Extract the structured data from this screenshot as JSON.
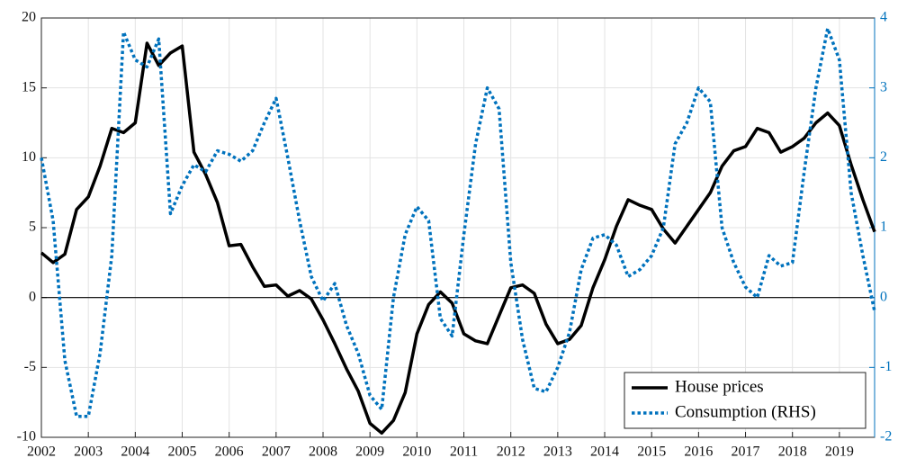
{
  "chart_data": {
    "type": "line",
    "x": [
      2002,
      2002.25,
      2002.5,
      2002.75,
      2003,
      2003.25,
      2003.5,
      2003.75,
      2004,
      2004.25,
      2004.5,
      2004.75,
      2005,
      2005.25,
      2005.5,
      2005.75,
      2006,
      2006.25,
      2006.5,
      2006.75,
      2007,
      2007.25,
      2007.5,
      2007.75,
      2008,
      2008.25,
      2008.5,
      2008.75,
      2009,
      2009.25,
      2009.5,
      2009.75,
      2010,
      2010.25,
      2010.5,
      2010.75,
      2011,
      2011.25,
      2011.5,
      2011.75,
      2012,
      2012.25,
      2012.5,
      2012.75,
      2013,
      2013.25,
      2013.5,
      2013.75,
      2014,
      2014.25,
      2014.5,
      2014.75,
      2015,
      2015.25,
      2015.5,
      2015.75,
      2016,
      2016.25,
      2016.5,
      2016.75,
      2017,
      2017.25,
      2017.5,
      2017.75,
      2018,
      2018.25,
      2018.5,
      2018.75,
      2019,
      2019.25,
      2019.5,
      2019.75
    ],
    "series": [
      {
        "name": "House prices",
        "color": "#000000",
        "line_style": "solid",
        "values": [
          3.2,
          2.5,
          3.1,
          6.3,
          7.2,
          9.4,
          12.1,
          11.8,
          12.5,
          18.2,
          16.6,
          17.5,
          18.0,
          10.4,
          8.8,
          6.8,
          3.7,
          3.8,
          2.2,
          0.8,
          0.9,
          0.1,
          0.5,
          -0.1,
          -1.6,
          -3.3,
          -5.1,
          -6.7,
          -9.0,
          -9.7,
          -8.8,
          -6.8,
          -2.6,
          -0.5,
          0.4,
          -0.4,
          -2.6,
          -3.1,
          -3.3,
          -1.3,
          0.7,
          0.9,
          0.3,
          -1.9,
          -3.3,
          -3.0,
          -2.0,
          0.7,
          2.7,
          5.1,
          7.0,
          6.6,
          6.3,
          4.9,
          3.9,
          5.1,
          6.3,
          7.5,
          9.4,
          10.5,
          10.8,
          12.1,
          11.8,
          10.4,
          10.8,
          11.4,
          12.5,
          13.2,
          12.3,
          9.5,
          7.0,
          4.7
        ]
      },
      {
        "name": "Consumption (RHS)",
        "color": "#0072BD",
        "line_style": "dotted",
        "axis": "y2",
        "values": [
          2.0,
          1.1,
          -0.9,
          -1.7,
          -1.7,
          -0.8,
          0.6,
          3.8,
          3.4,
          3.3,
          3.7,
          1.2,
          1.6,
          1.9,
          1.8,
          2.1,
          2.05,
          1.95,
          2.1,
          2.5,
          2.85,
          2.0,
          1.1,
          0.3,
          -0.05,
          0.2,
          -0.4,
          -0.8,
          -1.4,
          -1.6,
          0.0,
          0.9,
          1.3,
          1.1,
          -0.3,
          -0.55,
          0.9,
          2.2,
          3.0,
          2.7,
          0.5,
          -0.6,
          -1.3,
          -1.35,
          -1.0,
          -0.5,
          0.4,
          0.85,
          0.9,
          0.75,
          0.3,
          0.4,
          0.6,
          1.0,
          2.2,
          2.5,
          3.0,
          2.8,
          1.0,
          0.5,
          0.15,
          0.0,
          0.6,
          0.45,
          0.5,
          1.8,
          3.0,
          3.85,
          3.4,
          1.5,
          0.6,
          -0.2
        ]
      }
    ],
    "xlim": [
      2002,
      2019.75
    ],
    "xticks": [
      2002,
      2003,
      2004,
      2005,
      2006,
      2007,
      2008,
      2009,
      2010,
      2011,
      2012,
      2013,
      2014,
      2015,
      2016,
      2017,
      2018,
      2019
    ],
    "ylim": [
      -10,
      20
    ],
    "yticks": [
      -10,
      -5,
      0,
      5,
      10,
      15,
      20
    ],
    "y2lim": [
      -2,
      4
    ],
    "y2ticks": [
      -2,
      -1,
      0,
      1,
      2,
      3,
      4
    ],
    "y2color": "#0072BD",
    "grid": true,
    "legend": "lower right"
  }
}
